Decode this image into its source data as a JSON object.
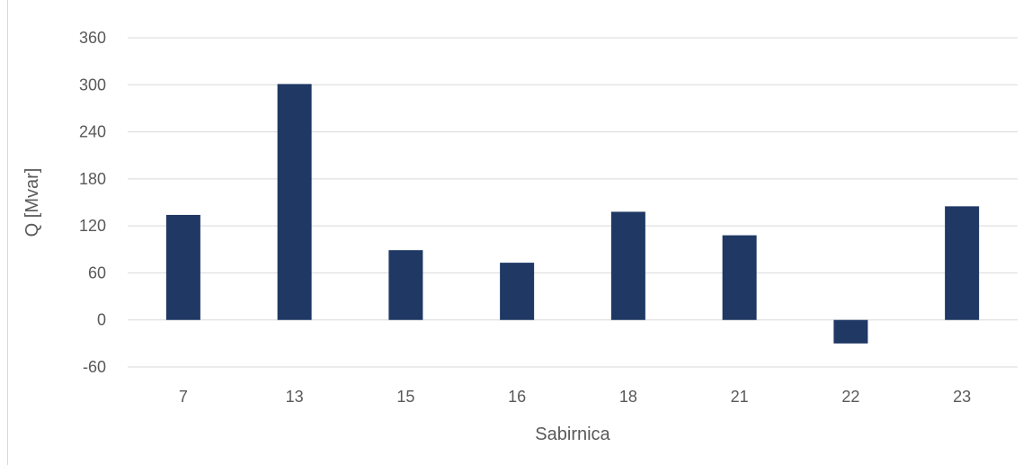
{
  "chart_data": {
    "type": "bar",
    "categories": [
      "7",
      "13",
      "15",
      "16",
      "18",
      "21",
      "22",
      "23"
    ],
    "values": [
      134,
      301,
      89,
      73,
      138,
      108,
      -30,
      145
    ],
    "title": "",
    "xlabel": "Sabirnica",
    "ylabel": "Q [Mvar]",
    "ylim": [
      -60,
      360
    ],
    "yticks": [
      -60,
      0,
      60,
      120,
      180,
      240,
      300,
      360
    ],
    "grid": true,
    "legend": "none",
    "bar_color": "#1f3864",
    "grid_color": "#d9d9d9"
  }
}
